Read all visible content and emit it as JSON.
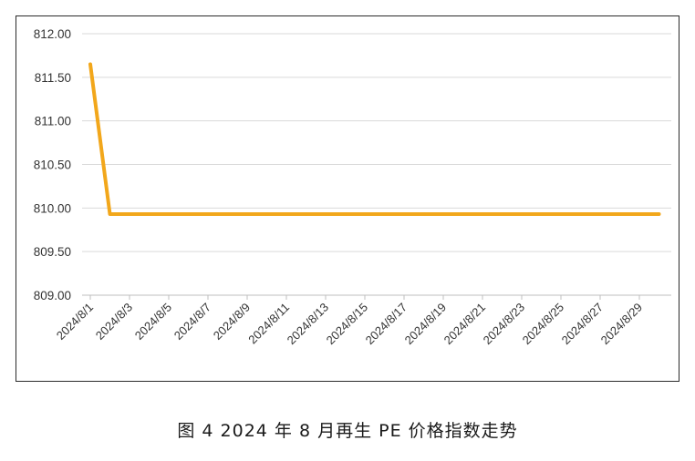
{
  "caption": "图 4  2024 年 8 月再生 PE 价格指数走势",
  "chart_data": {
    "type": "line",
    "title": "",
    "xlabel": "",
    "ylabel": "",
    "ylim": [
      809.0,
      812.0
    ],
    "yticks": [
      "812.00",
      "811.50",
      "811.00",
      "810.50",
      "810.00",
      "809.50",
      "809.00"
    ],
    "x_tick_labels": [
      "2024/8/1",
      "2024/8/3",
      "2024/8/5",
      "2024/8/7",
      "2024/8/9",
      "2024/8/11",
      "2024/8/13",
      "2024/8/15",
      "2024/8/17",
      "2024/8/19",
      "2024/8/21",
      "2024/8/23",
      "2024/8/25",
      "2024/8/27",
      "2024/8/29"
    ],
    "grid": true,
    "line_color": "#F2A71B",
    "series": [
      {
        "x": [
          "2024/8/1",
          "2024/8/2",
          "2024/8/3",
          "2024/8/4",
          "2024/8/5",
          "2024/8/6",
          "2024/8/7",
          "2024/8/8",
          "2024/8/9",
          "2024/8/10",
          "2024/8/11",
          "2024/8/12",
          "2024/8/13",
          "2024/8/14",
          "2024/8/15",
          "2024/8/16",
          "2024/8/17",
          "2024/8/18",
          "2024/8/19",
          "2024/8/20",
          "2024/8/21",
          "2024/8/22",
          "2024/8/23",
          "2024/8/24",
          "2024/8/25",
          "2024/8/26",
          "2024/8/27",
          "2024/8/28",
          "2024/8/29",
          "2024/8/30"
        ],
        "values": [
          811.65,
          809.93,
          809.93,
          809.93,
          809.93,
          809.93,
          809.93,
          809.93,
          809.93,
          809.93,
          809.93,
          809.93,
          809.93,
          809.93,
          809.93,
          809.93,
          809.93,
          809.93,
          809.93,
          809.93,
          809.93,
          809.93,
          809.93,
          809.93,
          809.93,
          809.93,
          809.93,
          809.93,
          809.93,
          809.93
        ]
      }
    ]
  }
}
